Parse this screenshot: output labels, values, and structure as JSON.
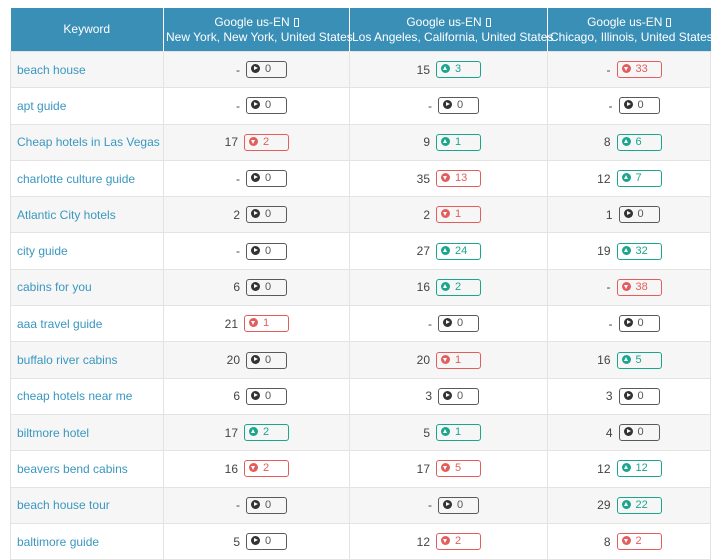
{
  "header": {
    "keyword_label": "Keyword",
    "columns": [
      {
        "engine": "Google us-EN",
        "device_icon": "mobile-device-icon",
        "location": "New York, New York, United States"
      },
      {
        "engine": "Google us-EN",
        "device_icon": "mobile-device-icon",
        "location": "Los Angeles, California, United States"
      },
      {
        "engine": "Google us-EN",
        "device_icon": "mobile-device-icon",
        "location": "Chicago, Illinois, United States"
      }
    ]
  },
  "colors": {
    "header_bg": "#3a8fb7",
    "keyword_text": "#3a97c0",
    "up": "#1aa58e",
    "down": "#e35d5d",
    "flat": "#555555"
  },
  "rows": [
    {
      "keyword": "beach house",
      "cells": [
        {
          "rank": "-",
          "dir": "flat",
          "change": "0"
        },
        {
          "rank": "15",
          "dir": "up",
          "change": "3"
        },
        {
          "rank": "-",
          "dir": "down",
          "change": "33"
        }
      ]
    },
    {
      "keyword": "apt guide",
      "cells": [
        {
          "rank": "-",
          "dir": "flat",
          "change": "0"
        },
        {
          "rank": "-",
          "dir": "flat",
          "change": "0"
        },
        {
          "rank": "-",
          "dir": "flat",
          "change": "0"
        }
      ]
    },
    {
      "keyword": "Cheap hotels in Las Vegas",
      "cells": [
        {
          "rank": "17",
          "dir": "down",
          "change": "2"
        },
        {
          "rank": "9",
          "dir": "up",
          "change": "1"
        },
        {
          "rank": "8",
          "dir": "up",
          "change": "6"
        }
      ]
    },
    {
      "keyword": "charlotte culture guide",
      "cells": [
        {
          "rank": "-",
          "dir": "flat",
          "change": "0"
        },
        {
          "rank": "35",
          "dir": "down",
          "change": "13"
        },
        {
          "rank": "12",
          "dir": "up",
          "change": "7"
        }
      ]
    },
    {
      "keyword": "Atlantic City hotels",
      "cells": [
        {
          "rank": "2",
          "dir": "flat",
          "change": "0"
        },
        {
          "rank": "2",
          "dir": "down",
          "change": "1"
        },
        {
          "rank": "1",
          "dir": "flat",
          "change": "0"
        }
      ]
    },
    {
      "keyword": "city guide",
      "cells": [
        {
          "rank": "-",
          "dir": "flat",
          "change": "0"
        },
        {
          "rank": "27",
          "dir": "up",
          "change": "24"
        },
        {
          "rank": "19",
          "dir": "up",
          "change": "32"
        }
      ]
    },
    {
      "keyword": "cabins for you",
      "cells": [
        {
          "rank": "6",
          "dir": "flat",
          "change": "0"
        },
        {
          "rank": "16",
          "dir": "up",
          "change": "2"
        },
        {
          "rank": "-",
          "dir": "down",
          "change": "38"
        }
      ]
    },
    {
      "keyword": "aaa travel guide",
      "cells": [
        {
          "rank": "21",
          "dir": "down",
          "change": "1"
        },
        {
          "rank": "-",
          "dir": "flat",
          "change": "0"
        },
        {
          "rank": "-",
          "dir": "flat",
          "change": "0"
        }
      ]
    },
    {
      "keyword": "buffalo river cabins",
      "cells": [
        {
          "rank": "20",
          "dir": "flat",
          "change": "0"
        },
        {
          "rank": "20",
          "dir": "down",
          "change": "1"
        },
        {
          "rank": "16",
          "dir": "up",
          "change": "5"
        }
      ]
    },
    {
      "keyword": "cheap hotels near me",
      "cells": [
        {
          "rank": "6",
          "dir": "flat",
          "change": "0"
        },
        {
          "rank": "3",
          "dir": "flat",
          "change": "0"
        },
        {
          "rank": "3",
          "dir": "flat",
          "change": "0"
        }
      ]
    },
    {
      "keyword": "biltmore hotel",
      "cells": [
        {
          "rank": "17",
          "dir": "up",
          "change": "2"
        },
        {
          "rank": "5",
          "dir": "up",
          "change": "1"
        },
        {
          "rank": "4",
          "dir": "flat",
          "change": "0"
        }
      ]
    },
    {
      "keyword": "beavers bend cabins",
      "cells": [
        {
          "rank": "16",
          "dir": "down",
          "change": "2"
        },
        {
          "rank": "17",
          "dir": "down",
          "change": "5"
        },
        {
          "rank": "12",
          "dir": "up",
          "change": "12"
        }
      ]
    },
    {
      "keyword": "beach house tour",
      "cells": [
        {
          "rank": "-",
          "dir": "flat",
          "change": "0"
        },
        {
          "rank": "-",
          "dir": "flat",
          "change": "0"
        },
        {
          "rank": "29",
          "dir": "up",
          "change": "22"
        }
      ]
    },
    {
      "keyword": "baltimore guide",
      "cells": [
        {
          "rank": "5",
          "dir": "flat",
          "change": "0"
        },
        {
          "rank": "12",
          "dir": "down",
          "change": "2"
        },
        {
          "rank": "8",
          "dir": "down",
          "change": "2"
        }
      ]
    }
  ]
}
